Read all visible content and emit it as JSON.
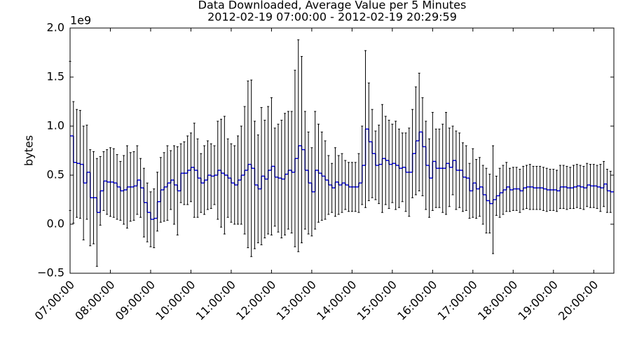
{
  "chart_data": {
    "type": "step-errorbar",
    "title": "Data Downloaded, Average Value per 5 Minutes",
    "subtitle": "2012-02-19 07:00:00 - 2012-02-19 20:29:59",
    "ylabel": "bytes",
    "y_offset_label": "1e9",
    "line_color": "#0000ff",
    "error_color": "#000000",
    "xlim": [
      "07:00:00",
      "20:30:00"
    ],
    "xticks": [
      "07:00:00",
      "08:00:00",
      "09:00:00",
      "10:00:00",
      "11:00:00",
      "12:00:00",
      "13:00:00",
      "14:00:00",
      "15:00:00",
      "16:00:00",
      "17:00:00",
      "18:00:00",
      "19:00:00",
      "20:00:00"
    ],
    "ylim": [
      -500000000.0,
      2000000000.0
    ],
    "yticks": [
      {
        "value": -500000000.0,
        "label": "−0.5"
      },
      {
        "value": 0,
        "label": "0.0"
      },
      {
        "value": 500000000.0,
        "label": "0.5"
      },
      {
        "value": 1000000000.0,
        "label": "1.0"
      },
      {
        "value": 1500000000.0,
        "label": "1.5"
      },
      {
        "value": 2000000000.0,
        "label": "2.0"
      }
    ],
    "x": [
      "07:00:00",
      "07:05:00",
      "07:10:00",
      "07:15:00",
      "07:20:00",
      "07:25:00",
      "07:30:00",
      "07:35:00",
      "07:40:00",
      "07:45:00",
      "07:50:00",
      "07:55:00",
      "08:00:00",
      "08:05:00",
      "08:10:00",
      "08:15:00",
      "08:20:00",
      "08:25:00",
      "08:30:00",
      "08:35:00",
      "08:40:00",
      "08:45:00",
      "08:50:00",
      "08:55:00",
      "09:00:00",
      "09:05:00",
      "09:10:00",
      "09:15:00",
      "09:20:00",
      "09:25:00",
      "09:30:00",
      "09:35:00",
      "09:40:00",
      "09:45:00",
      "09:50:00",
      "09:55:00",
      "10:00:00",
      "10:05:00",
      "10:10:00",
      "10:15:00",
      "10:20:00",
      "10:25:00",
      "10:30:00",
      "10:35:00",
      "10:40:00",
      "10:45:00",
      "10:50:00",
      "10:55:00",
      "11:00:00",
      "11:05:00",
      "11:10:00",
      "11:15:00",
      "11:20:00",
      "11:25:00",
      "11:30:00",
      "11:35:00",
      "11:40:00",
      "11:45:00",
      "11:50:00",
      "11:55:00",
      "12:00:00",
      "12:05:00",
      "12:10:00",
      "12:15:00",
      "12:20:00",
      "12:25:00",
      "12:30:00",
      "12:35:00",
      "12:40:00",
      "12:45:00",
      "12:50:00",
      "12:55:00",
      "13:00:00",
      "13:05:00",
      "13:10:00",
      "13:15:00",
      "13:20:00",
      "13:25:00",
      "13:30:00",
      "13:35:00",
      "13:40:00",
      "13:45:00",
      "13:50:00",
      "13:55:00",
      "14:00:00",
      "14:05:00",
      "14:10:00",
      "14:15:00",
      "14:20:00",
      "14:25:00",
      "14:30:00",
      "14:35:00",
      "14:40:00",
      "14:45:00",
      "14:50:00",
      "14:55:00",
      "15:00:00",
      "15:05:00",
      "15:10:00",
      "15:15:00",
      "15:20:00",
      "15:25:00",
      "15:30:00",
      "15:35:00",
      "15:40:00",
      "15:45:00",
      "15:50:00",
      "15:55:00",
      "16:00:00",
      "16:05:00",
      "16:10:00",
      "16:15:00",
      "16:20:00",
      "16:25:00",
      "16:30:00",
      "16:35:00",
      "16:40:00",
      "16:45:00",
      "16:50:00",
      "16:55:00",
      "17:00:00",
      "17:05:00",
      "17:10:00",
      "17:15:00",
      "17:20:00",
      "17:25:00",
      "17:30:00",
      "17:35:00",
      "17:40:00",
      "17:45:00",
      "17:50:00",
      "17:55:00",
      "18:00:00",
      "18:05:00",
      "18:10:00",
      "18:15:00",
      "18:20:00",
      "18:25:00",
      "18:30:00",
      "18:35:00",
      "18:40:00",
      "18:45:00",
      "18:50:00",
      "18:55:00",
      "19:00:00",
      "19:05:00",
      "19:10:00",
      "19:15:00",
      "19:20:00",
      "19:25:00",
      "19:30:00",
      "19:35:00",
      "19:40:00",
      "19:45:00",
      "19:50:00",
      "19:55:00",
      "20:00:00",
      "20:05:00",
      "20:10:00",
      "20:15:00",
      "20:20:00",
      "20:25:00"
    ],
    "values": [
      900000000.0,
      630000000.0,
      620000000.0,
      610000000.0,
      420000000.0,
      530000000.0,
      270000000.0,
      270000000.0,
      120000000.0,
      340000000.0,
      440000000.0,
      430000000.0,
      430000000.0,
      420000000.0,
      380000000.0,
      340000000.0,
      350000000.0,
      380000000.0,
      380000000.0,
      390000000.0,
      450000000.0,
      370000000.0,
      220000000.0,
      120000000.0,
      50000000.0,
      60000000.0,
      230000000.0,
      350000000.0,
      380000000.0,
      420000000.0,
      450000000.0,
      400000000.0,
      340000000.0,
      520000000.0,
      520000000.0,
      550000000.0,
      580000000.0,
      550000000.0,
      470000000.0,
      420000000.0,
      450000000.0,
      500000000.0,
      490000000.0,
      500000000.0,
      550000000.0,
      520000000.0,
      500000000.0,
      470000000.0,
      420000000.0,
      400000000.0,
      450000000.0,
      500000000.0,
      550000000.0,
      610000000.0,
      570000000.0,
      400000000.0,
      360000000.0,
      490000000.0,
      460000000.0,
      550000000.0,
      590000000.0,
      480000000.0,
      470000000.0,
      460000000.0,
      510000000.0,
      550000000.0,
      530000000.0,
      670000000.0,
      800000000.0,
      760000000.0,
      550000000.0,
      420000000.0,
      330000000.0,
      550000000.0,
      520000000.0,
      490000000.0,
      450000000.0,
      400000000.0,
      370000000.0,
      430000000.0,
      400000000.0,
      420000000.0,
      400000000.0,
      380000000.0,
      380000000.0,
      380000000.0,
      420000000.0,
      600000000.0,
      970000000.0,
      840000000.0,
      720000000.0,
      600000000.0,
      610000000.0,
      670000000.0,
      650000000.0,
      610000000.0,
      620000000.0,
      600000000.0,
      570000000.0,
      580000000.0,
      530000000.0,
      530000000.0,
      720000000.0,
      850000000.0,
      940000000.0,
      790000000.0,
      600000000.0,
      470000000.0,
      640000000.0,
      570000000.0,
      570000000.0,
      570000000.0,
      620000000.0,
      580000000.0,
      650000000.0,
      550000000.0,
      550000000.0,
      480000000.0,
      470000000.0,
      340000000.0,
      420000000.0,
      360000000.0,
      380000000.0,
      300000000.0,
      240000000.0,
      210000000.0,
      250000000.0,
      290000000.0,
      320000000.0,
      350000000.0,
      380000000.0,
      350000000.0,
      360000000.0,
      360000000.0,
      340000000.0,
      370000000.0,
      380000000.0,
      380000000.0,
      370000000.0,
      370000000.0,
      370000000.0,
      360000000.0,
      350000000.0,
      350000000.0,
      350000000.0,
      340000000.0,
      380000000.0,
      380000000.0,
      370000000.0,
      370000000.0,
      380000000.0,
      390000000.0,
      380000000.0,
      370000000.0,
      400000000.0,
      390000000.0,
      390000000.0,
      380000000.0,
      370000000.0,
      410000000.0,
      340000000.0,
      330000000.0
    ],
    "errors": [
      760000000.0,
      620000000.0,
      550000000.0,
      550000000.0,
      580000000.0,
      480000000.0,
      490000000.0,
      470000000.0,
      550000000.0,
      350000000.0,
      300000000.0,
      330000000.0,
      350000000.0,
      350000000.0,
      330000000.0,
      300000000.0,
      350000000.0,
      420000000.0,
      350000000.0,
      350000000.0,
      350000000.0,
      300000000.0,
      350000000.0,
      300000000.0,
      280000000.0,
      300000000.0,
      300000000.0,
      330000000.0,
      350000000.0,
      380000000.0,
      300000000.0,
      400000000.0,
      450000000.0,
      300000000.0,
      320000000.0,
      350000000.0,
      350000000.0,
      480000000.0,
      400000000.0,
      300000000.0,
      350000000.0,
      350000000.0,
      330000000.0,
      300000000.0,
      500000000.0,
      550000000.0,
      600000000.0,
      400000000.0,
      400000000.0,
      400000000.0,
      450000000.0,
      500000000.0,
      650000000.0,
      850000000.0,
      900000000.0,
      650000000.0,
      550000000.0,
      700000000.0,
      600000000.0,
      650000000.0,
      700000000.0,
      500000000.0,
      550000000.0,
      600000000.0,
      620000000.0,
      600000000.0,
      620000000.0,
      900000000.0,
      1080000000.0,
      950000000.0,
      600000000.0,
      520000000.0,
      450000000.0,
      600000000.0,
      500000000.0,
      450000000.0,
      400000000.0,
      300000000.0,
      250000000.0,
      350000000.0,
      300000000.0,
      300000000.0,
      250000000.0,
      250000000.0,
      250000000.0,
      250000000.0,
      300000000.0,
      400000000.0,
      800000000.0,
      600000000.0,
      450000000.0,
      350000000.0,
      400000000.0,
      550000000.0,
      450000000.0,
      450000000.0,
      400000000.0,
      450000000.0,
      400000000.0,
      350000000.0,
      400000000.0,
      450000000.0,
      450000000.0,
      550000000.0,
      600000000.0,
      500000000.0,
      450000000.0,
      400000000.0,
      500000000.0,
      400000000.0,
      400000000.0,
      450000000.0,
      520000000.0,
      400000000.0,
      350000000.0,
      400000000.0,
      380000000.0,
      350000000.0,
      330000000.0,
      280000000.0,
      350000000.0,
      300000000.0,
      300000000.0,
      300000000.0,
      330000000.0,
      300000000.0,
      550000000.0,
      200000000.0,
      250000000.0,
      250000000.0,
      250000000.0,
      220000000.0,
      220000000.0,
      220000000.0,
      220000000.0,
      220000000.0,
      220000000.0,
      230000000.0,
      220000000.0,
      220000000.0,
      220000000.0,
      220000000.0,
      220000000.0,
      210000000.0,
      210000000.0,
      210000000.0,
      220000000.0,
      220000000.0,
      220000000.0,
      210000000.0,
      220000000.0,
      220000000.0,
      220000000.0,
      220000000.0,
      220000000.0,
      220000000.0,
      220000000.0,
      220000000.0,
      240000000.0,
      230000000.0,
      220000000.0,
      210000000.0
    ]
  }
}
